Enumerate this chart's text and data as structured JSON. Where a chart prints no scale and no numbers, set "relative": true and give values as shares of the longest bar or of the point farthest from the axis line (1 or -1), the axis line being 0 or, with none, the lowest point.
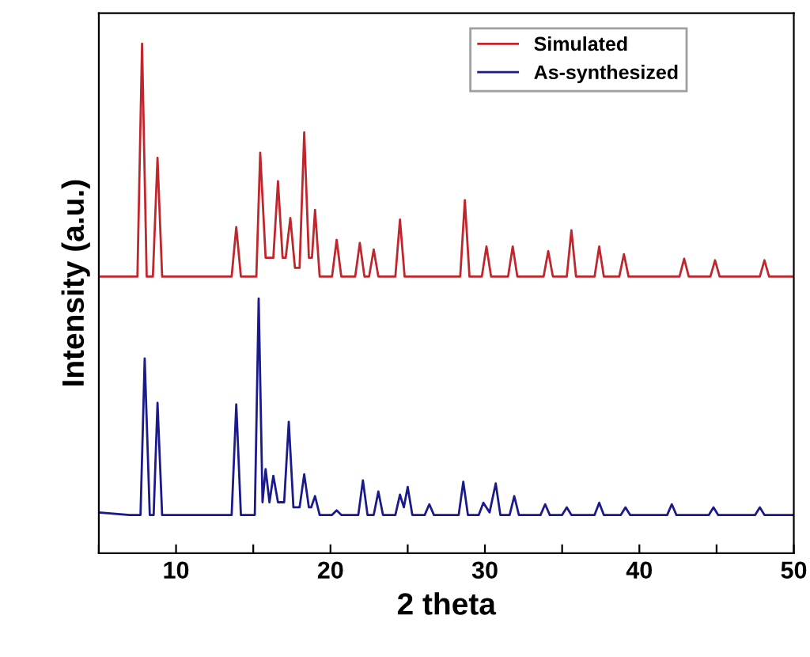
{
  "chart_data": {
    "type": "line",
    "relative": true,
    "xlabel": "2 theta",
    "ylabel": "Intensity (a.u.)",
    "xlim": [
      5,
      50
    ],
    "xticks": [
      {
        "value": 5,
        "label": null
      },
      10,
      {
        "value": 15,
        "label": null
      },
      20,
      {
        "value": 25,
        "label": null
      },
      30,
      {
        "value": 35,
        "label": null
      },
      40,
      {
        "value": 45,
        "label": null
      },
      50
    ],
    "legend": "top right",
    "grid": false,
    "tick_labels": "x",
    "series": [
      {
        "name": "Simulated",
        "color": "#c0272d",
        "x": [
          5,
          7.5,
          7.8,
          8.1,
          8.5,
          8.8,
          9.1,
          13.6,
          13.9,
          14.2,
          15.2,
          15.45,
          15.8,
          16.3,
          16.6,
          16.9,
          17.1,
          17.4,
          17.7,
          18.0,
          18.3,
          18.6,
          18.8,
          19.0,
          19.3,
          20.1,
          20.4,
          20.7,
          21.6,
          21.9,
          22.2,
          22.5,
          22.8,
          23.1,
          24.2,
          24.5,
          24.8,
          28.4,
          28.7,
          29.0,
          29.8,
          30.1,
          30.4,
          31.5,
          31.8,
          32.1,
          33.8,
          34.1,
          34.4,
          35.3,
          35.6,
          35.9,
          37.1,
          37.4,
          37.7,
          38.7,
          39.0,
          39.3,
          42.6,
          42.9,
          43.2,
          44.6,
          44.9,
          45.2,
          47.8,
          48.1,
          48.4,
          50
        ],
        "values": [
          0.543,
          0.543,
          1.0,
          0.543,
          0.543,
          0.776,
          0.543,
          0.543,
          0.64,
          0.543,
          0.543,
          0.786,
          0.58,
          0.58,
          0.73,
          0.58,
          0.58,
          0.658,
          0.56,
          0.56,
          0.826,
          0.58,
          0.58,
          0.674,
          0.543,
          0.543,
          0.615,
          0.543,
          0.543,
          0.609,
          0.543,
          0.543,
          0.596,
          0.543,
          0.543,
          0.655,
          0.543,
          0.543,
          0.693,
          0.543,
          0.543,
          0.602,
          0.543,
          0.543,
          0.602,
          0.543,
          0.543,
          0.593,
          0.543,
          0.543,
          0.634,
          0.543,
          0.543,
          0.602,
          0.543,
          0.543,
          0.587,
          0.543,
          0.543,
          0.578,
          0.543,
          0.543,
          0.575,
          0.543,
          0.543,
          0.575,
          0.543,
          0.543
        ]
      },
      {
        "name": "As-synthesized",
        "color": "#1a1a8c",
        "x": [
          5,
          7.0,
          7.7,
          7.97,
          8.3,
          8.55,
          8.8,
          9.1,
          13.6,
          13.9,
          14.2,
          15.1,
          15.35,
          15.6,
          15.8,
          16.05,
          16.3,
          16.6,
          17.0,
          17.3,
          17.6,
          18.0,
          18.3,
          18.6,
          18.75,
          19.0,
          19.3,
          20.1,
          20.4,
          20.7,
          21.8,
          22.1,
          22.4,
          22.8,
          23.1,
          23.4,
          24.2,
          24.5,
          24.75,
          25.0,
          25.3,
          26.1,
          26.4,
          26.7,
          28.3,
          28.6,
          28.9,
          29.6,
          29.9,
          30.3,
          30.7,
          31.0,
          31.6,
          31.9,
          32.2,
          33.6,
          33.9,
          34.2,
          35.0,
          35.3,
          35.6,
          37.1,
          37.4,
          37.7,
          38.8,
          39.1,
          39.4,
          41.8,
          42.1,
          42.4,
          44.5,
          44.8,
          45.1,
          47.5,
          47.8,
          48.1,
          50
        ],
        "values": [
          0.08,
          0.075,
          0.075,
          0.382,
          0.075,
          0.075,
          0.295,
          0.075,
          0.075,
          0.292,
          0.075,
          0.075,
          0.5,
          0.1,
          0.165,
          0.1,
          0.152,
          0.1,
          0.1,
          0.258,
          0.09,
          0.09,
          0.155,
          0.09,
          0.09,
          0.112,
          0.075,
          0.075,
          0.084,
          0.075,
          0.075,
          0.143,
          0.075,
          0.075,
          0.121,
          0.075,
          0.075,
          0.115,
          0.09,
          0.13,
          0.075,
          0.075,
          0.096,
          0.075,
          0.075,
          0.14,
          0.075,
          0.075,
          0.099,
          0.08,
          0.137,
          0.075,
          0.075,
          0.112,
          0.075,
          0.075,
          0.096,
          0.075,
          0.075,
          0.09,
          0.075,
          0.075,
          0.099,
          0.075,
          0.075,
          0.09,
          0.075,
          0.075,
          0.096,
          0.075,
          0.075,
          0.09,
          0.075,
          0.075,
          0.09,
          0.075,
          0.075
        ]
      }
    ]
  }
}
